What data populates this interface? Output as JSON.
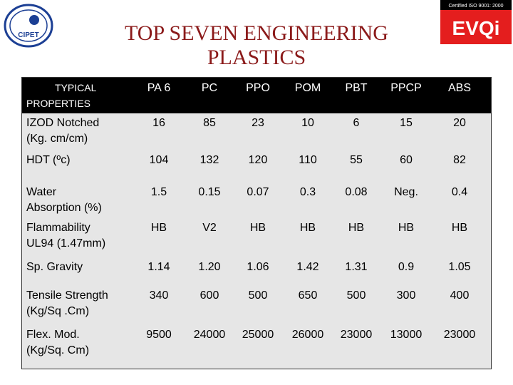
{
  "header": {
    "title_lines": [
      "TOP SEVEN ENGINEERING",
      "PLASTICS"
    ],
    "left_logo": "CIPET",
    "right_logo_caption": "Certified ISO 9001: 2000",
    "right_logo": "EVQi"
  },
  "table": {
    "header": [
      [
        "TYPICAL",
        "PROPERTIES"
      ],
      "PA 6",
      "PC",
      "PPO",
      "POM",
      "PBT",
      "PPCP",
      "ABS"
    ],
    "rows": [
      [
        [
          "IZOD Notched",
          "(Kg. cm/cm)"
        ],
        "16",
        "85",
        "23",
        "10",
        "6",
        "15",
        "20"
      ],
      [
        [
          "HDT (ºc)"
        ],
        "104",
        "132",
        "120",
        "110",
        "55",
        "60",
        "82"
      ],
      [
        [
          "Water",
          "Absorption (%)"
        ],
        "1.5",
        "0.15",
        "0.07",
        "0.3",
        "0.08",
        "Neg.",
        "0.4"
      ],
      [
        [
          "Flammability",
          "UL94 (1.47mm)"
        ],
        "HB",
        "V2",
        "HB",
        "HB",
        "HB",
        "HB",
        "HB"
      ],
      [
        [
          "Sp. Gravity"
        ],
        "1.14",
        "1.20",
        "1.06",
        "1.42",
        "1.31",
        "0.9",
        "1.05"
      ],
      [
        [
          "Tensile Strength",
          "(Kg/Sq .Cm)"
        ],
        "340",
        "600",
        "500",
        "650",
        "500",
        "300",
        "400"
      ],
      [
        [
          "Flex. Mod.",
          "(Kg/Sq. Cm)"
        ],
        "9500",
        "24000",
        "25000",
        "26000",
        "23000",
        "13000",
        "23000"
      ]
    ]
  }
}
